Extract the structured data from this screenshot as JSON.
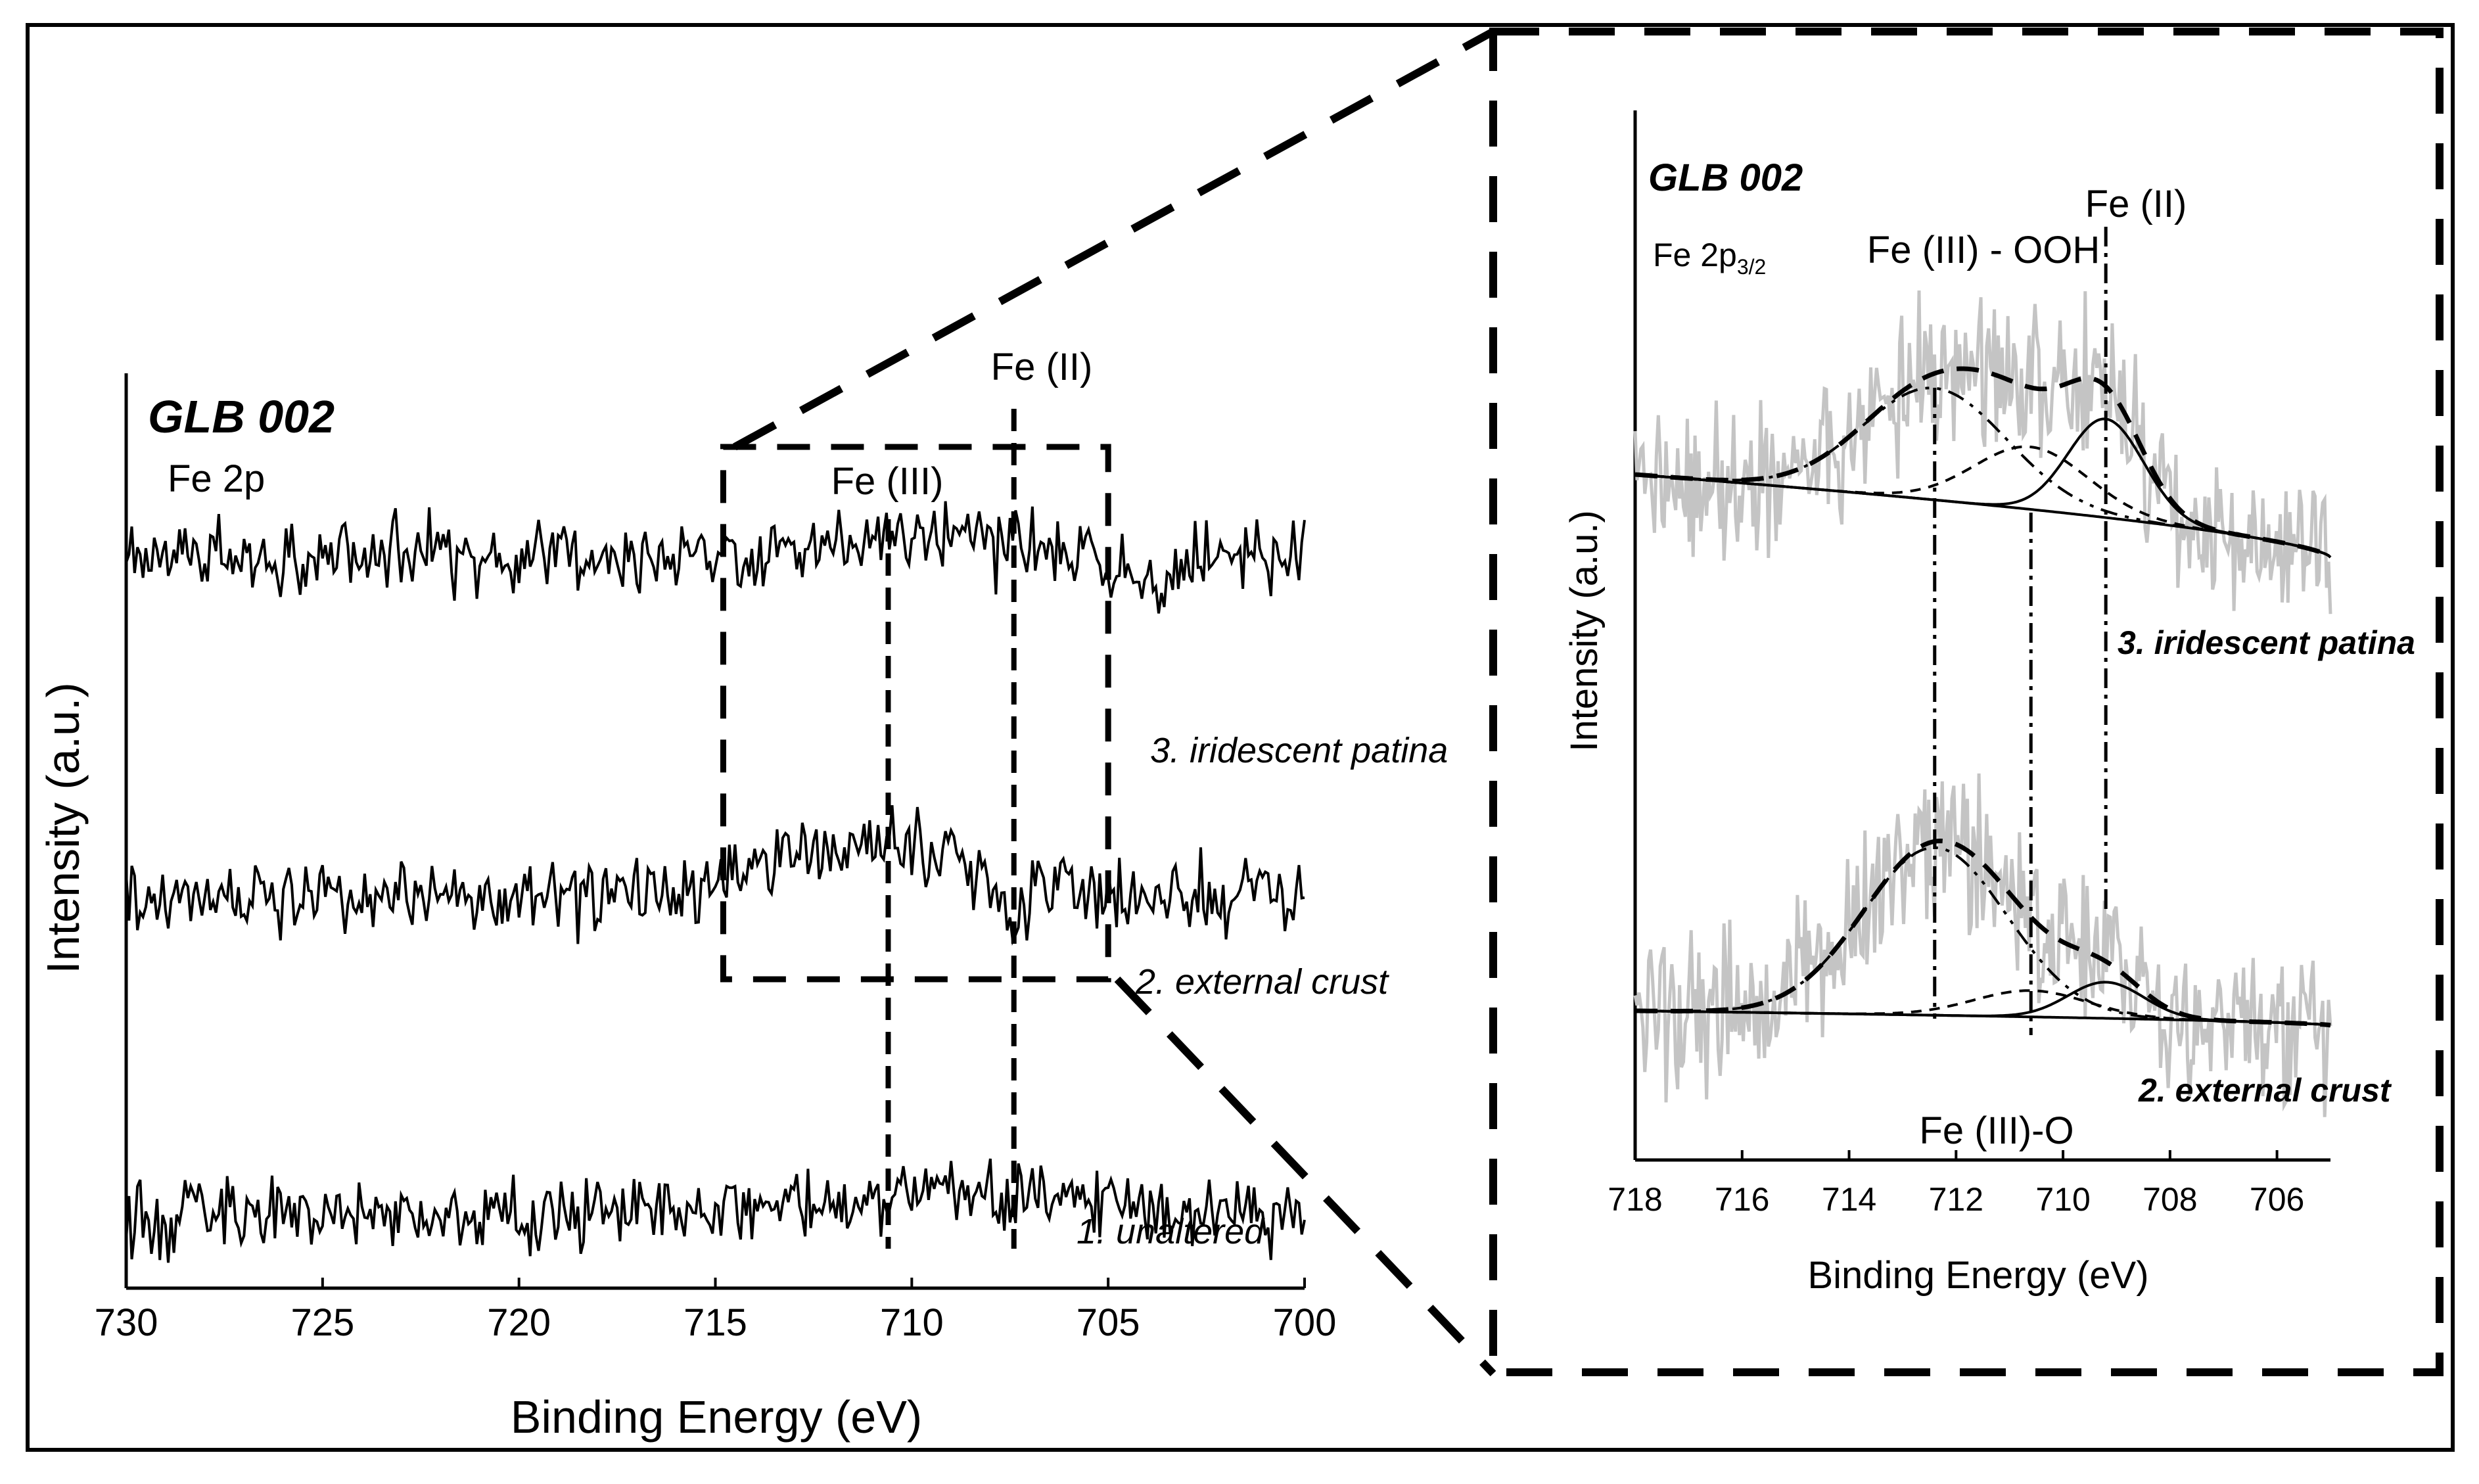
{
  "chart_data": [
    {
      "type": "line",
      "panel": "left",
      "title": "GLB 002",
      "subtitle": "Fe 2p",
      "xlabel": "Binding Energy (eV)",
      "ylabel": "Intensity (a.u.)",
      "xlim": [
        730,
        700
      ],
      "xticks": [
        730,
        725,
        720,
        715,
        710,
        705,
        700
      ],
      "series": [
        {
          "name": "3. iridescent patina",
          "baseline": 0.8
        },
        {
          "name": "2. external crust",
          "baseline": 0.43
        },
        {
          "name": "1. unaltered",
          "baseline": 0.08
        }
      ],
      "reference_lines": [
        {
          "label": "Fe (III)",
          "x": 710.6
        },
        {
          "label": "Fe (II)",
          "x": 707.4
        }
      ],
      "zoom_window": {
        "x": [
          714.8,
          705.0
        ]
      }
    },
    {
      "type": "line",
      "panel": "right",
      "title": "GLB 002",
      "subtitle_main": "Fe 2p",
      "subtitle_sub": "3/2",
      "xlabel": "Binding Energy (eV)",
      "ylabel": "Intensity (a.u.)",
      "xlim": [
        718,
        705
      ],
      "xticks": [
        718,
        716,
        714,
        712,
        710,
        708,
        706
      ],
      "series": [
        {
          "name": "3. iridescent patina"
        },
        {
          "name": "2. external crust"
        }
      ],
      "components": [
        {
          "label": "Fe (III)-O",
          "x": 712.4
        },
        {
          "label": "Fe (III) - OOH",
          "x": 710.6
        },
        {
          "label": "Fe (II)",
          "x": 709.2
        }
      ]
    }
  ]
}
